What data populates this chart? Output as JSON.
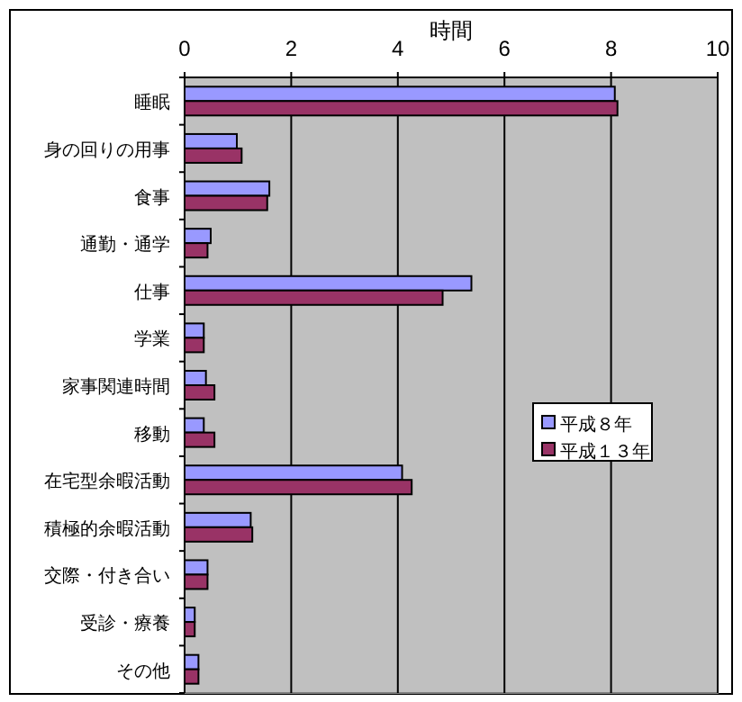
{
  "chart_data": {
    "type": "bar",
    "orientation": "horizontal",
    "xlabel": "時間",
    "categories": [
      "睡眠",
      "身の回りの用事",
      "食事",
      "通勤・通学",
      "仕事",
      "学業",
      "家事関連時間",
      "移動",
      "在宅型余暇活動",
      "積極的余暇活動",
      "交際・付き合い",
      "受診・療養",
      "その他"
    ],
    "series": [
      {
        "name": "平成８年",
        "color": "#9999ff",
        "values": [
          8.07,
          0.98,
          1.59,
          0.49,
          5.38,
          0.36,
          0.4,
          0.36,
          4.08,
          1.24,
          0.43,
          0.19,
          0.26
        ]
      },
      {
        "name": "平成１３年",
        "color": "#993366",
        "values": [
          8.12,
          1.07,
          1.55,
          0.43,
          4.84,
          0.36,
          0.56,
          0.56,
          4.26,
          1.27,
          0.43,
          0.19,
          0.26
        ]
      }
    ],
    "xlim": [
      0,
      10
    ],
    "xticks": [
      0,
      2,
      4,
      6,
      8,
      10
    ],
    "grid": "x",
    "legend": "right"
  }
}
